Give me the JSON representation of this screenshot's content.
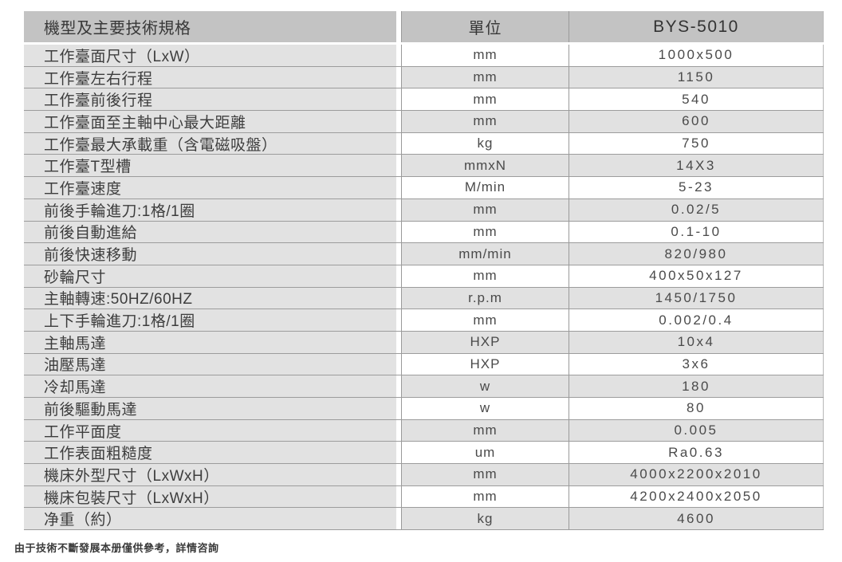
{
  "table": {
    "header": {
      "spec_label": "機型及主要技術規格",
      "unit_label": "單位",
      "model_label": "BYS-5010"
    },
    "rows": [
      {
        "label": "工作臺面尺寸（LxW）",
        "unit": "mm",
        "value": "1000x500"
      },
      {
        "label": "工作臺左右行程",
        "unit": "mm",
        "value": "1150"
      },
      {
        "label": "工作臺前後行程",
        "unit": "mm",
        "value": "540"
      },
      {
        "label": "工作臺面至主軸中心最大距離",
        "unit": "mm",
        "value": "600"
      },
      {
        "label": "工作臺最大承載重（含電磁吸盤）",
        "unit": "kg",
        "value": "750"
      },
      {
        "label": "工作臺T型槽",
        "unit": "mmxN",
        "value": "14X3"
      },
      {
        "label": "工作臺速度",
        "unit": "M/min",
        "value": "5-23"
      },
      {
        "label": "前後手輪進刀:1格/1圈",
        "unit": "mm",
        "value": "0.02/5"
      },
      {
        "label": "前後自動進給",
        "unit": "mm",
        "value": "0.1-10"
      },
      {
        "label": "前後快速移動",
        "unit": "mm/min",
        "value": "820/980"
      },
      {
        "label": "砂輪尺寸",
        "unit": "mm",
        "value": "400x50x127"
      },
      {
        "label": "主軸轉速:50HZ/60HZ",
        "unit": "r.p.m",
        "value": "1450/1750"
      },
      {
        "label": "上下手輪進刀:1格/1圈",
        "unit": "mm",
        "value": "0.002/0.4"
      },
      {
        "label": "主軸馬達",
        "unit": "HXP",
        "value": "10x4"
      },
      {
        "label": "油壓馬達",
        "unit": "HXP",
        "value": "3x6"
      },
      {
        "label": "冷却馬達",
        "unit": "w",
        "value": "180"
      },
      {
        "label": "前後驅動馬達",
        "unit": "w",
        "value": "80"
      },
      {
        "label": "工作平面度",
        "unit": "mm",
        "value": "0.005"
      },
      {
        "label": "工作表面粗糙度",
        "unit": "um",
        "value": "Ra0.63"
      },
      {
        "label": "機床外型尺寸（LxWxH）",
        "unit": "mm",
        "value": "4000x2200x2010"
      },
      {
        "label": "機床包裝尺寸（LxWxH）",
        "unit": "mm",
        "value": "4200x2400x2050"
      },
      {
        "label": "净重（約）",
        "unit": "kg",
        "value": "4600"
      }
    ]
  },
  "footer": {
    "note": "由于技術不斷發展本册僅供參考，詳情咨詢"
  },
  "colors": {
    "header_bg": "#c3c3c3",
    "label_column_bg": "#e2e2e2",
    "row_alt_bg": "#e1e1e1",
    "row_plain_bg": "#ffffff",
    "grid_line": "#9c9c9c",
    "text": "#3d3d3d"
  }
}
